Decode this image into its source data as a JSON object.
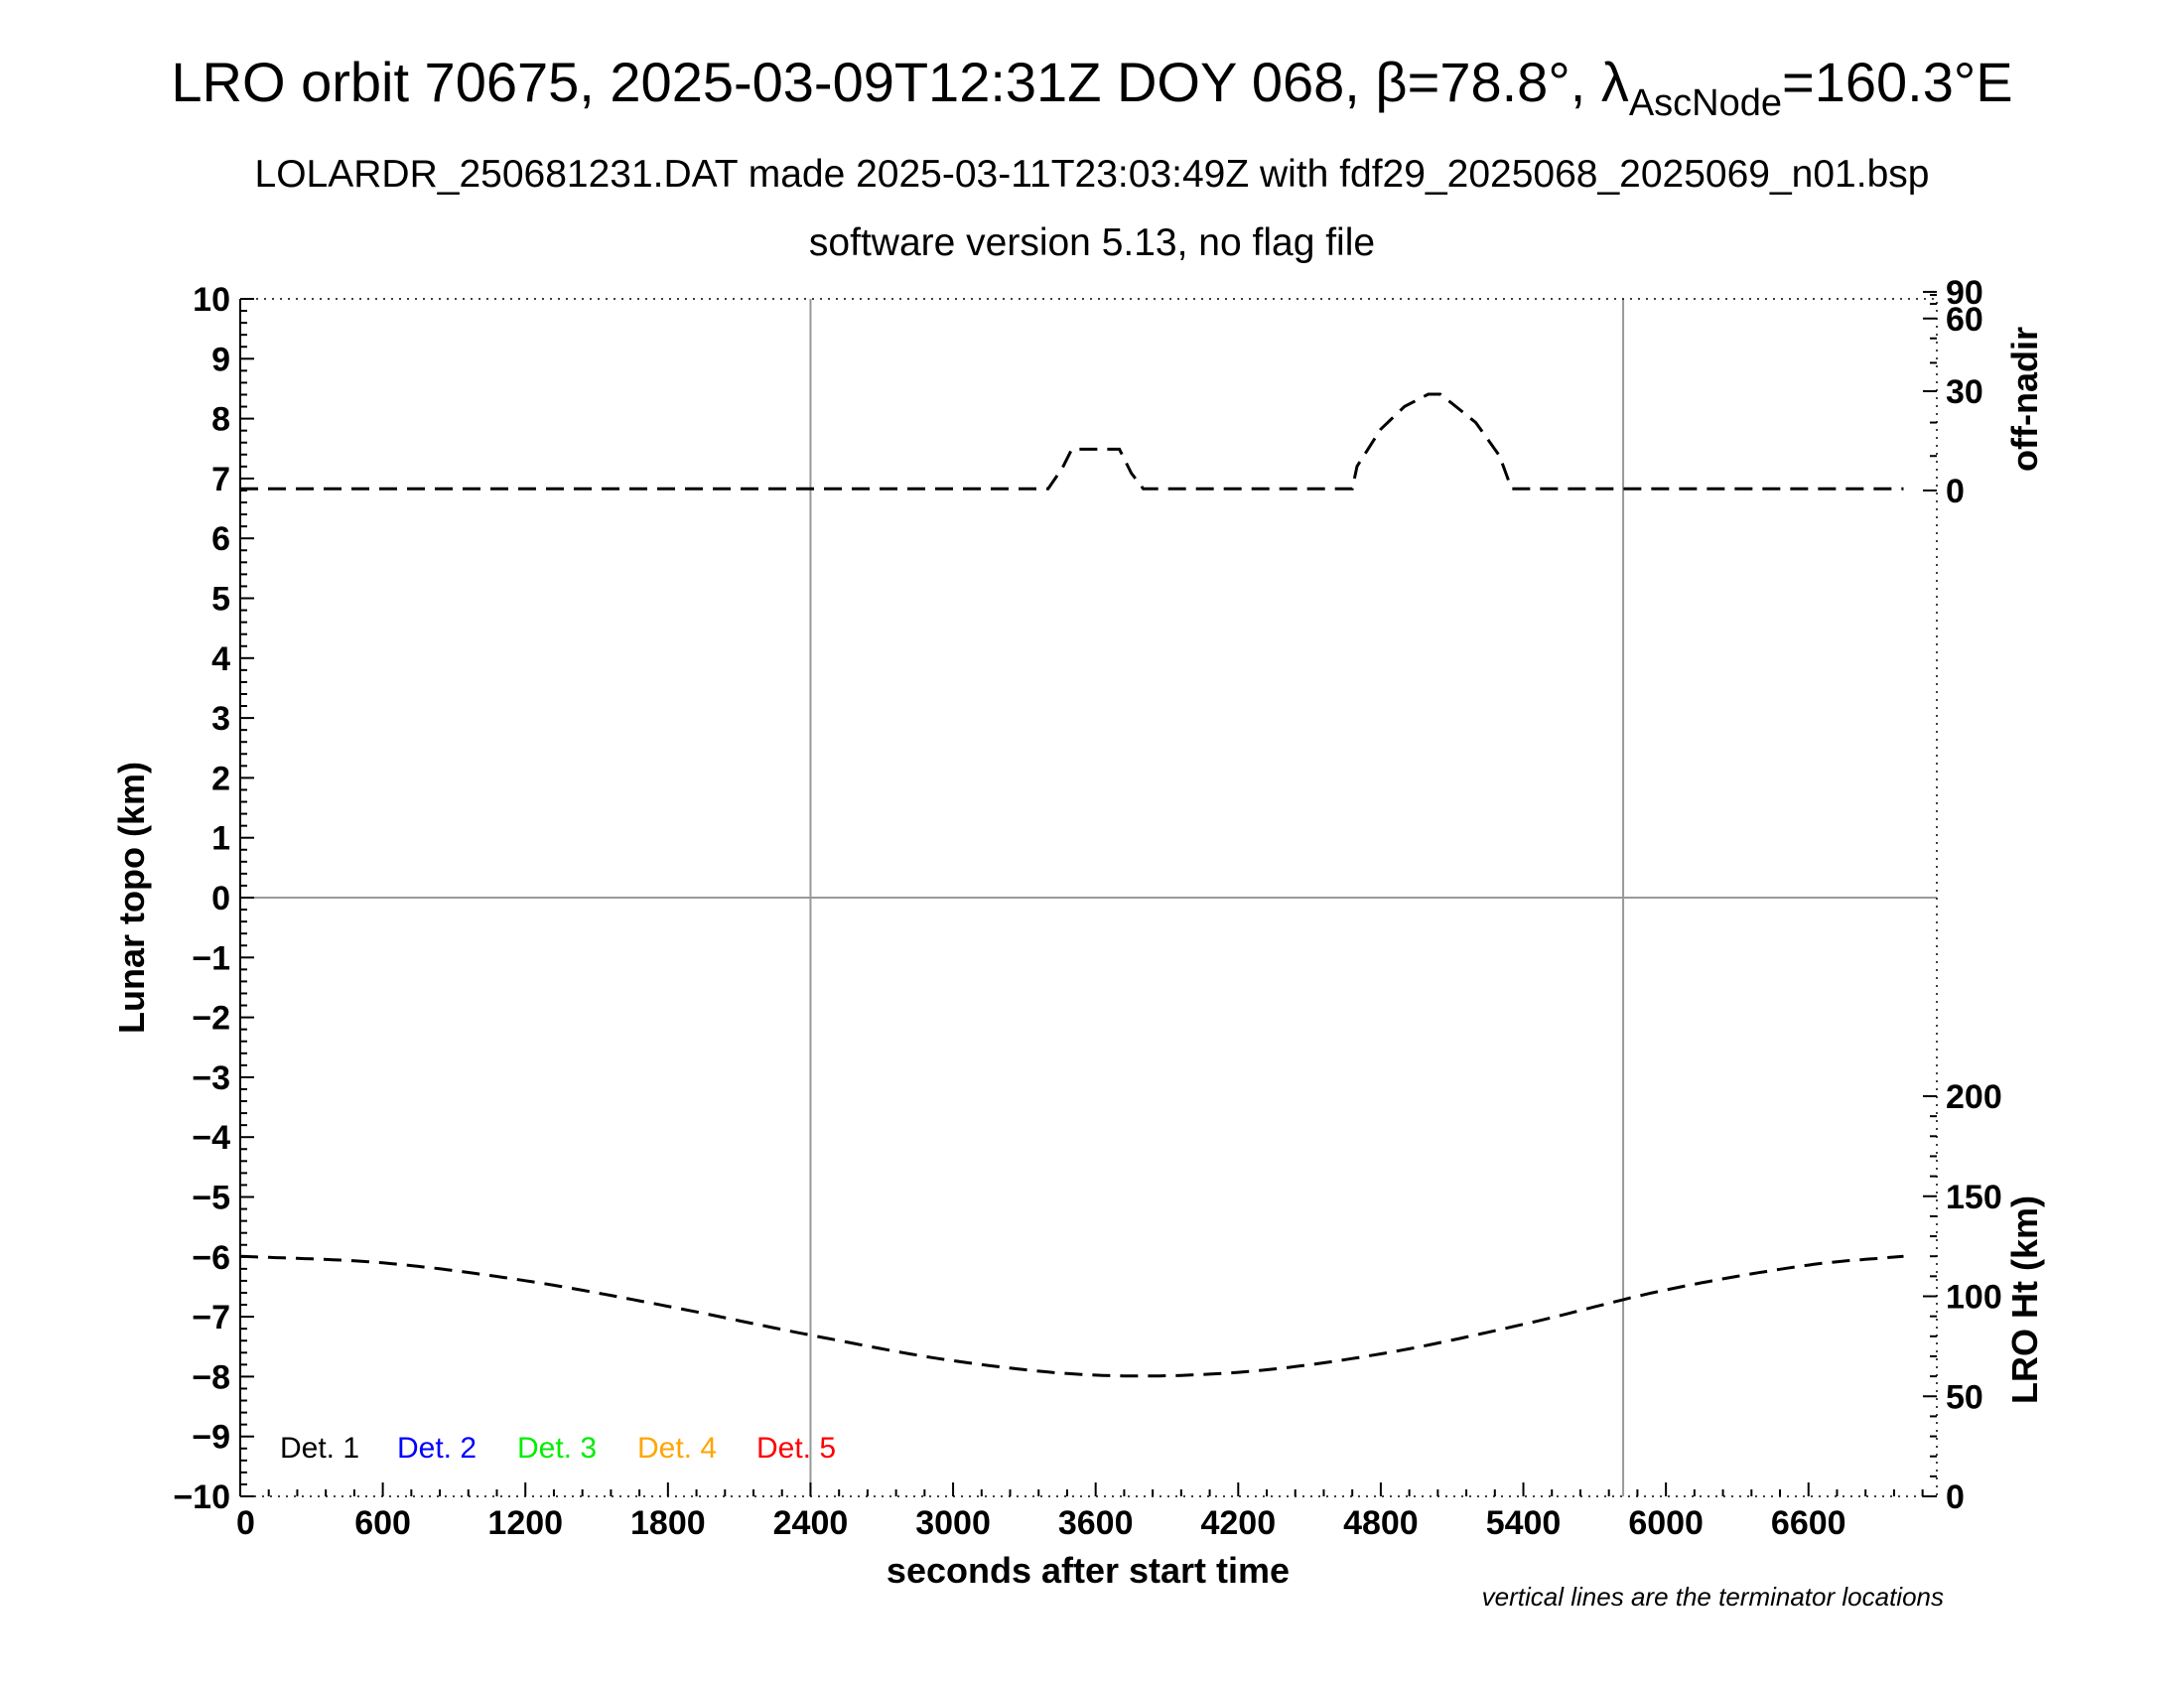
{
  "chart_data": {
    "type": "line",
    "title_main": "LRO orbit 70675, 2025-03-09T12:31Z DOY 068, β=78.8°, λ",
    "title_subscript": "AscNode",
    "title_end": "=160.3°E",
    "subtitle_1": "LOLARDR_250681231.DAT made 2025-03-11T23:03:49Z with fdf29_2025068_2025069_n01.bsp",
    "subtitle_2": "software version 5.13, no flag file",
    "xlabel": "seconds after start time",
    "ylabel_left": "Lunar topo (km)",
    "ylabel_right_top": "off-nadir",
    "ylabel_right_bottom": "LRO Ht (km)",
    "note": "vertical lines are the terminator locations",
    "xlim": [
      0,
      7140
    ],
    "ylim": [
      -10,
      10
    ],
    "x_ticks": [
      "0",
      "600",
      "1200",
      "1800",
      "2400",
      "3000",
      "3600",
      "4200",
      "4800",
      "5400",
      "6000",
      "6600"
    ],
    "y_ticks": [
      "−10",
      "−9",
      "−8",
      "−7",
      "−6",
      "−5",
      "−4",
      "−3",
      "−2",
      "−1",
      "0",
      "1",
      "2",
      "3",
      "4",
      "5",
      "6",
      "7",
      "8",
      "9",
      "10"
    ],
    "right_top_ticks": [
      "90",
      "60",
      "30",
      "0"
    ],
    "right_bottom_ticks": [
      "0",
      "50",
      "100",
      "150",
      "200"
    ],
    "terminator_x": [
      2400,
      5820
    ],
    "grid_y": [
      0
    ],
    "legend": [
      {
        "label": "Det. 1",
        "color": "#000000"
      },
      {
        "label": "Det. 2",
        "color": "#0000ff"
      },
      {
        "label": "Det. 3",
        "color": "#00ee00"
      },
      {
        "label": "Det. 4",
        "color": "#ffa500"
      },
      {
        "label": "Det. 5",
        "color": "#ff0000"
      }
    ],
    "series": [
      {
        "axis": "off-nadir (deg)",
        "x": [
          0,
          3400,
          3460,
          3500,
          3700,
          3750,
          3800,
          4680,
          4700,
          4800,
          4900,
          5000,
          5050,
          5100,
          5200,
          5300,
          5350,
          5360,
          5400,
          7000
        ],
        "y": [
          0.5,
          0.5,
          6.5,
          12,
          12,
          5,
          0.5,
          0.5,
          7,
          18,
          25,
          29,
          29,
          26,
          20,
          10,
          0.5,
          0.5,
          0.5,
          0.5
        ]
      },
      {
        "axis": "LRO Ht (km)",
        "x": [
          0,
          600,
          1200,
          1800,
          2400,
          3000,
          3600,
          4200,
          4800,
          5400,
          6000,
          6600,
          7000
        ],
        "y": [
          120,
          116.7,
          107.8,
          95,
          80.6,
          67.8,
          60.6,
          62,
          71.2,
          86,
          103.2,
          115.6,
          120
        ]
      }
    ]
  }
}
